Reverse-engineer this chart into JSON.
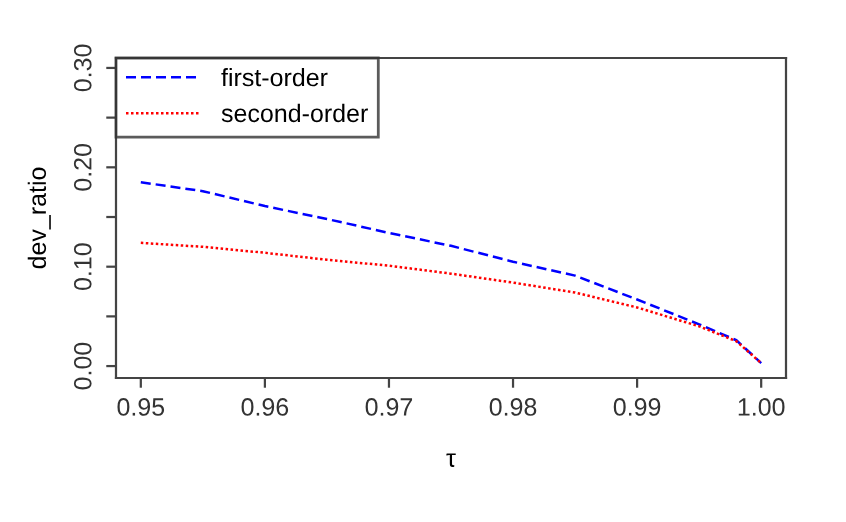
{
  "chart_data": {
    "type": "line",
    "xlabel": "τ",
    "ylabel": "dev_ratio",
    "xlim": [
      0.948,
      1.002
    ],
    "xticks": [
      {
        "value": 0.95,
        "label": "0.95"
      },
      {
        "value": 0.96,
        "label": "0.96"
      },
      {
        "value": 0.97,
        "label": "0.97"
      },
      {
        "value": 0.98,
        "label": "0.98"
      },
      {
        "value": 0.99,
        "label": "0.99"
      },
      {
        "value": 1.0,
        "label": "1.00"
      }
    ],
    "ylim": [
      -0.012,
      0.31
    ],
    "yticks": [
      {
        "value": 0.0,
        "label": "0.00"
      },
      {
        "value": 0.05,
        "label": null
      },
      {
        "value": 0.1,
        "label": "0.10"
      },
      {
        "value": 0.15,
        "label": null
      },
      {
        "value": 0.2,
        "label": "0.20"
      },
      {
        "value": 0.25,
        "label": null
      },
      {
        "value": 0.3,
        "label": "0.30"
      }
    ],
    "x": [
      0.95,
      0.955,
      0.96,
      0.965,
      0.97,
      0.975,
      0.98,
      0.985,
      0.99,
      0.995,
      0.998,
      1.0
    ],
    "series": [
      {
        "name": "first-order",
        "color": "#0000ff",
        "line_style": "dashed",
        "values": [
          0.185,
          0.176,
          0.161,
          0.148,
          0.134,
          0.121,
          0.105,
          0.091,
          0.067,
          0.042,
          0.026,
          0.003
        ]
      },
      {
        "name": "second-order",
        "color": "#ff0000",
        "line_style": "dotted",
        "values": [
          0.124,
          0.12,
          0.114,
          0.107,
          0.101,
          0.093,
          0.084,
          0.074,
          0.059,
          0.04,
          0.025,
          0.003
        ]
      }
    ],
    "legend": "top left",
    "grid": false,
    "marker": "none"
  }
}
